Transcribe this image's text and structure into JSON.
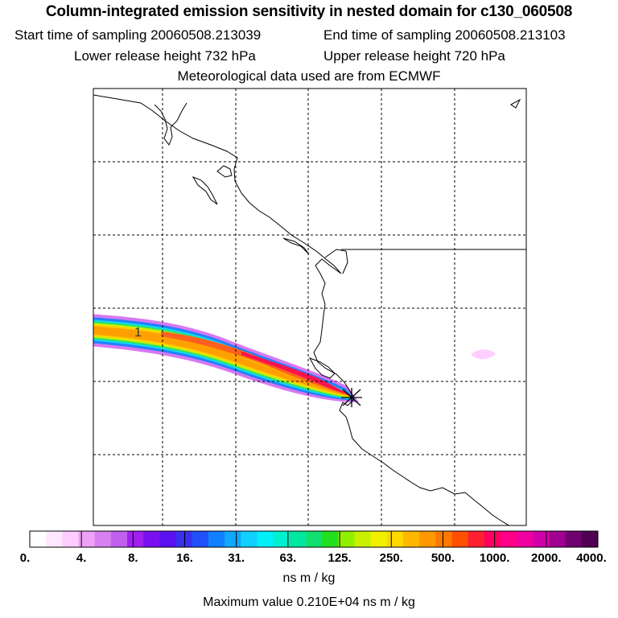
{
  "header": {
    "title": "Column-integrated emission sensitivity in nested domain for c130_060508",
    "start_label": "Start time of sampling 20060508.213039",
    "end_label": "End time of sampling 20060508.213103",
    "lower_label": "Lower release height  732 hPa",
    "upper_label": "Upper release height  720 hPa",
    "met_label": "Meteorological data used are from ECMWF"
  },
  "map": {
    "plume_label": "1",
    "release_marker": "asterisk-icon"
  },
  "scale": {
    "tick_labels": [
      "0.",
      "4.",
      "8.",
      "16.",
      "31.",
      "63.",
      "125.",
      "250.",
      "500.",
      "1000.",
      "2000.",
      "4000."
    ],
    "colors": [
      "#ffffff",
      "#ffe8ff",
      "#ffccff",
      "#f0a0f8",
      "#d880f0",
      "#c060ee",
      "#a020f0",
      "#7a10f0",
      "#5a10f0",
      "#3a30f0",
      "#2050f8",
      "#1080ff",
      "#10a8ff",
      "#10d0ff",
      "#00f0f8",
      "#00f0d0",
      "#00e8a0",
      "#10e070",
      "#20e020",
      "#90f000",
      "#c8f000",
      "#f0f000",
      "#ffd800",
      "#ffb800",
      "#ff9800",
      "#ff7800",
      "#ff5000",
      "#ff2030",
      "#ff0060",
      "#ff0088",
      "#f000a0",
      "#d000a8",
      "#a00090",
      "#700070",
      "#500050"
    ],
    "units": "ns m / kg",
    "max_value": "Maximum value  0.210E+04 ns m / kg"
  }
}
